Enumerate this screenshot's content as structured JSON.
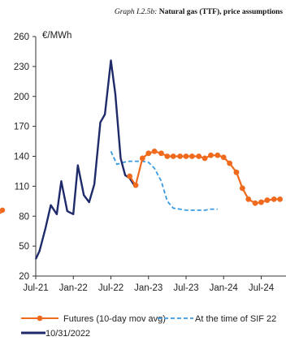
{
  "title_prefix": "Graph I.2.5b:",
  "title_main": "Natural gas (TTF), price assumptions",
  "chart_data": {
    "type": "line",
    "ylabel": "€/MWh",
    "ylim": [
      20,
      260
    ],
    "yticks": [
      20,
      50,
      80,
      110,
      140,
      170,
      200,
      230,
      260
    ],
    "xticks": [
      {
        "label": "Jul-21",
        "value": 2021.5
      },
      {
        "label": "Jan-22",
        "value": 2022.0
      },
      {
        "label": "Jul-22",
        "value": 2022.5
      },
      {
        "label": "Jan-23",
        "value": 2023.0
      },
      {
        "label": "Jul-23",
        "value": 2023.5
      },
      {
        "label": "Jan-24",
        "value": 2024.0
      },
      {
        "label": "Jul-24",
        "value": 2024.5
      }
    ],
    "grid": false,
    "legend_position": "bottom",
    "series": [
      {
        "name": "10/31/2022",
        "style": "solid",
        "color": "#1f2a6b",
        "x": [
          2021.5,
          2021.55,
          2021.63,
          2021.7,
          2021.78,
          2021.84,
          2021.92,
          2022.0,
          2022.06,
          2022.14,
          2022.21,
          2022.28,
          2022.36,
          2022.42,
          2022.5,
          2022.56,
          2022.63,
          2022.69,
          2022.75,
          2022.81
        ],
        "y": [
          37,
          45,
          68,
          91,
          82,
          115,
          85,
          82,
          131,
          101,
          94,
          112,
          174,
          182,
          236,
          202,
          138,
          121,
          118,
          111
        ]
      },
      {
        "name": "Futures (10-day mov avg)",
        "style": "solid-markers",
        "color": "#f06a1e",
        "x": [
          2022.75,
          2022.83,
          2022.92,
          2023.0,
          2023.08,
          2023.17,
          2023.25,
          2023.33,
          2023.42,
          2023.5,
          2023.58,
          2023.67,
          2023.75,
          2023.83,
          2023.92,
          2024.0,
          2024.08,
          2024.17,
          2024.25,
          2024.33,
          2024.42,
          2024.5,
          2024.58,
          2024.67,
          2024.75
        ],
        "y": [
          120,
          111,
          138,
          143,
          145,
          143,
          140,
          140,
          140,
          140,
          140,
          140,
          138,
          141,
          141,
          139,
          133,
          124,
          108,
          97,
          93,
          94,
          96,
          97,
          97
        ]
      },
      {
        "name": "At the time of SIF 22",
        "style": "dashed",
        "color": "#3a9ae0",
        "x": [
          2022.5,
          2022.53,
          2022.58,
          2022.67,
          2022.75,
          2022.83,
          2022.92,
          2023.0,
          2023.08,
          2023.17,
          2023.25,
          2023.33,
          2023.42,
          2023.5,
          2023.58,
          2023.67,
          2023.75,
          2023.83,
          2023.92
        ],
        "y": [
          145,
          140,
          132,
          134,
          135,
          135,
          135,
          134,
          128,
          115,
          95,
          88,
          87,
          86,
          86,
          86,
          86,
          87,
          87
        ]
      }
    ],
    "legend_order": [
      "Futures (10-day mov avg)",
      "At the time of SIF 22",
      "10/31/2022"
    ]
  }
}
